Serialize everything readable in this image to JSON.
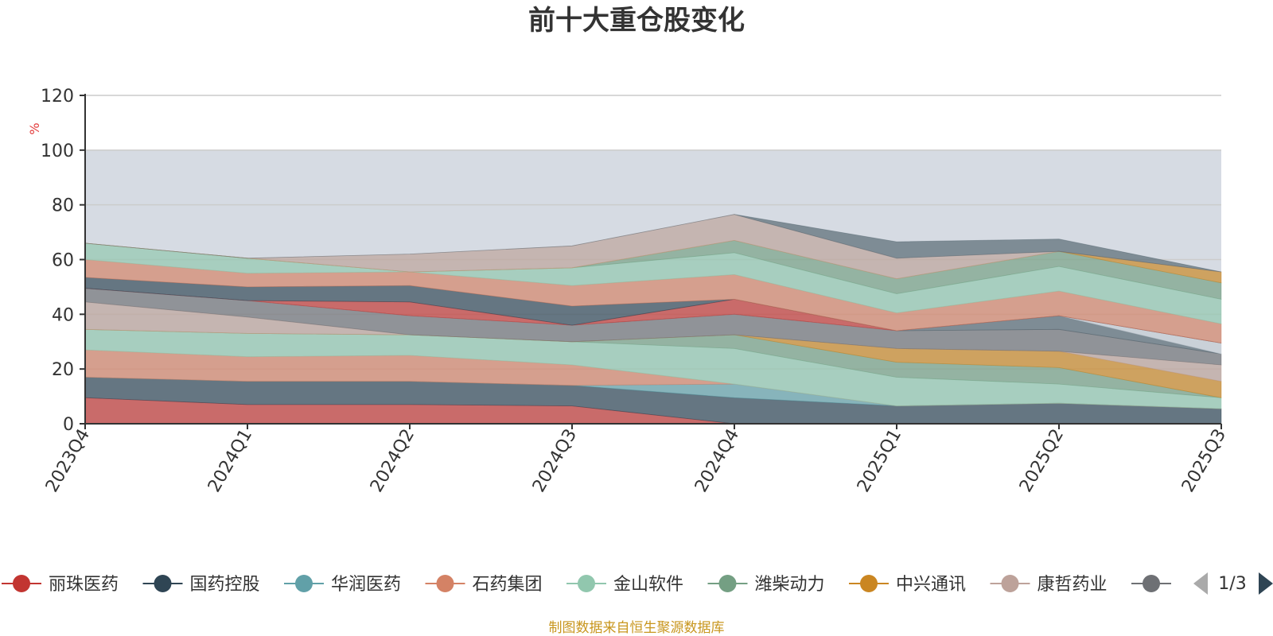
{
  "chart_data": {
    "type": "area",
    "title": "前十大重仓股变化",
    "unit": "%",
    "x": [
      "2023Q4",
      "2024Q1",
      "2024Q2",
      "2024Q3",
      "2024Q4",
      "2025Q1",
      "2025Q2",
      "2025Q3"
    ],
    "y_ticks": [
      "0",
      "20",
      "40",
      "60",
      "80",
      "100",
      "120"
    ],
    "ylim": [
      0,
      120
    ],
    "reference_band": [
      0,
      100
    ],
    "grid": true,
    "stacked": true,
    "series": [
      {
        "name": "丽珠医药",
        "color": "#c23531",
        "values": [
          9.5,
          7,
          7,
          6.5,
          0,
          0,
          0,
          0
        ]
      },
      {
        "name": "国药控股",
        "color": "#2f4554",
        "values": [
          7.5,
          8.5,
          8.5,
          7.5,
          9.5,
          6.5,
          7.5,
          5.5
        ]
      },
      {
        "name": "华润医药",
        "color": "#61a0a8",
        "values": [
          0,
          0,
          0,
          0,
          5,
          0,
          0,
          0
        ]
      },
      {
        "name": "石药集团",
        "color": "#d48265",
        "values": [
          10,
          9,
          9.5,
          7.5,
          0,
          0,
          0,
          0
        ]
      },
      {
        "name": "金山软件",
        "color": "#91c7ae",
        "values": [
          7.5,
          8.5,
          7.5,
          8.5,
          13,
          10.5,
          7,
          4
        ]
      },
      {
        "name": "潍柴动力",
        "color": "#749f83",
        "values": [
          0,
          0,
          0,
          0,
          5,
          5.5,
          6,
          0
        ]
      },
      {
        "name": "中兴通讯",
        "color": "#ca8622",
        "values": [
          0,
          0,
          0,
          0,
          0,
          5,
          6,
          6
        ]
      },
      {
        "name": "康哲药业",
        "color": "#bda29a",
        "values": [
          10,
          6,
          0,
          0,
          0,
          0,
          0,
          6
        ]
      },
      {
        "name": "",
        "color": "#6e7074",
        "values": [
          5,
          6,
          7,
          6,
          7.5,
          6.5,
          8,
          4
        ]
      },
      {
        "name": "",
        "color": "#546570",
        "values": [
          0,
          0,
          0,
          0,
          0,
          0,
          5,
          0
        ]
      },
      {
        "name": "",
        "color": "#c4ccd3",
        "values": [
          0,
          0,
          0,
          0,
          0,
          0,
          0,
          4
        ]
      },
      {
        "name": "",
        "color": "#c23531",
        "values": [
          0,
          0,
          5,
          0,
          5.5,
          0,
          0,
          0
        ]
      },
      {
        "name": "",
        "color": "#2f4554",
        "values": [
          4,
          5,
          6,
          7,
          0,
          0,
          0,
          0
        ]
      },
      {
        "name": "",
        "color": "#d48265",
        "values": [
          6.5,
          5,
          5,
          7.5,
          9,
          6.5,
          9,
          7
        ]
      },
      {
        "name": "",
        "color": "#91c7ae",
        "values": [
          6,
          5.5,
          0,
          6.5,
          8,
          7,
          9,
          9
        ]
      },
      {
        "name": "",
        "color": "#749f83",
        "values": [
          0,
          0,
          0,
          0,
          4.5,
          5.5,
          5.5,
          6
        ]
      },
      {
        "name": "",
        "color": "#ca8622",
        "values": [
          0,
          0,
          0,
          0,
          0,
          0,
          0,
          4
        ]
      },
      {
        "name": "",
        "color": "#bda29a",
        "values": [
          0,
          0,
          6.5,
          8,
          9.5,
          7.5,
          0,
          0
        ]
      },
      {
        "name": "",
        "color": "#546570",
        "values": [
          0,
          0,
          0,
          0,
          0,
          6,
          4.5,
          0
        ]
      }
    ]
  },
  "legend": {
    "items": [
      {
        "label": "丽珠医药",
        "color": "#c23531"
      },
      {
        "label": "国药控股",
        "color": "#2f4554"
      },
      {
        "label": "华润医药",
        "color": "#61a0a8"
      },
      {
        "label": "石药集团",
        "color": "#d48265"
      },
      {
        "label": "金山软件",
        "color": "#91c7ae"
      },
      {
        "label": "潍柴动力",
        "color": "#749f83"
      },
      {
        "label": "中兴通讯",
        "color": "#ca8622"
      },
      {
        "label": "康哲药业",
        "color": "#bda29a"
      },
      {
        "label": "",
        "color": "#6e7074"
      }
    ],
    "page_indicator": "1/3",
    "prev_icon": "triangle-left-icon",
    "next_icon": "triangle-right-icon"
  },
  "source_note": "制图数据来自恒生聚源数据库"
}
